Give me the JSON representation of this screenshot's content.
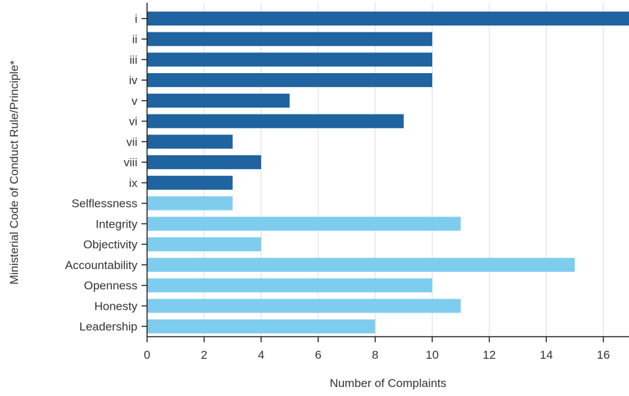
{
  "chart_data": {
    "type": "bar",
    "orientation": "horizontal",
    "categories": [
      "i",
      "ii",
      "iii",
      "iv",
      "v",
      "vi",
      "vii",
      "viii",
      "ix",
      "Selflessness",
      "Integrity",
      "Objectivity",
      "Accountability",
      "Openness",
      "Honesty",
      "Leadership"
    ],
    "values": [
      17,
      10,
      10,
      10,
      5,
      9,
      3,
      4,
      3,
      3,
      11,
      4,
      15,
      10,
      11,
      8
    ],
    "bar_colors": [
      "#1f64a0",
      "#1f64a0",
      "#1f64a0",
      "#1f64a0",
      "#1f64a0",
      "#1f64a0",
      "#1f64a0",
      "#1f64a0",
      "#1f64a0",
      "#7ecdee",
      "#7ecdee",
      "#7ecdee",
      "#7ecdee",
      "#7ecdee",
      "#7ecdee",
      "#7ecdee"
    ],
    "xlabel": "Number of Complaints",
    "ylabel": "Ministerial Code of Conduct Rule/Principle*",
    "xlim": [
      0,
      16.9
    ],
    "xticks": [
      0,
      2,
      4,
      6,
      8,
      10,
      12,
      14,
      16
    ],
    "grid": "vertical",
    "legend": "none"
  }
}
